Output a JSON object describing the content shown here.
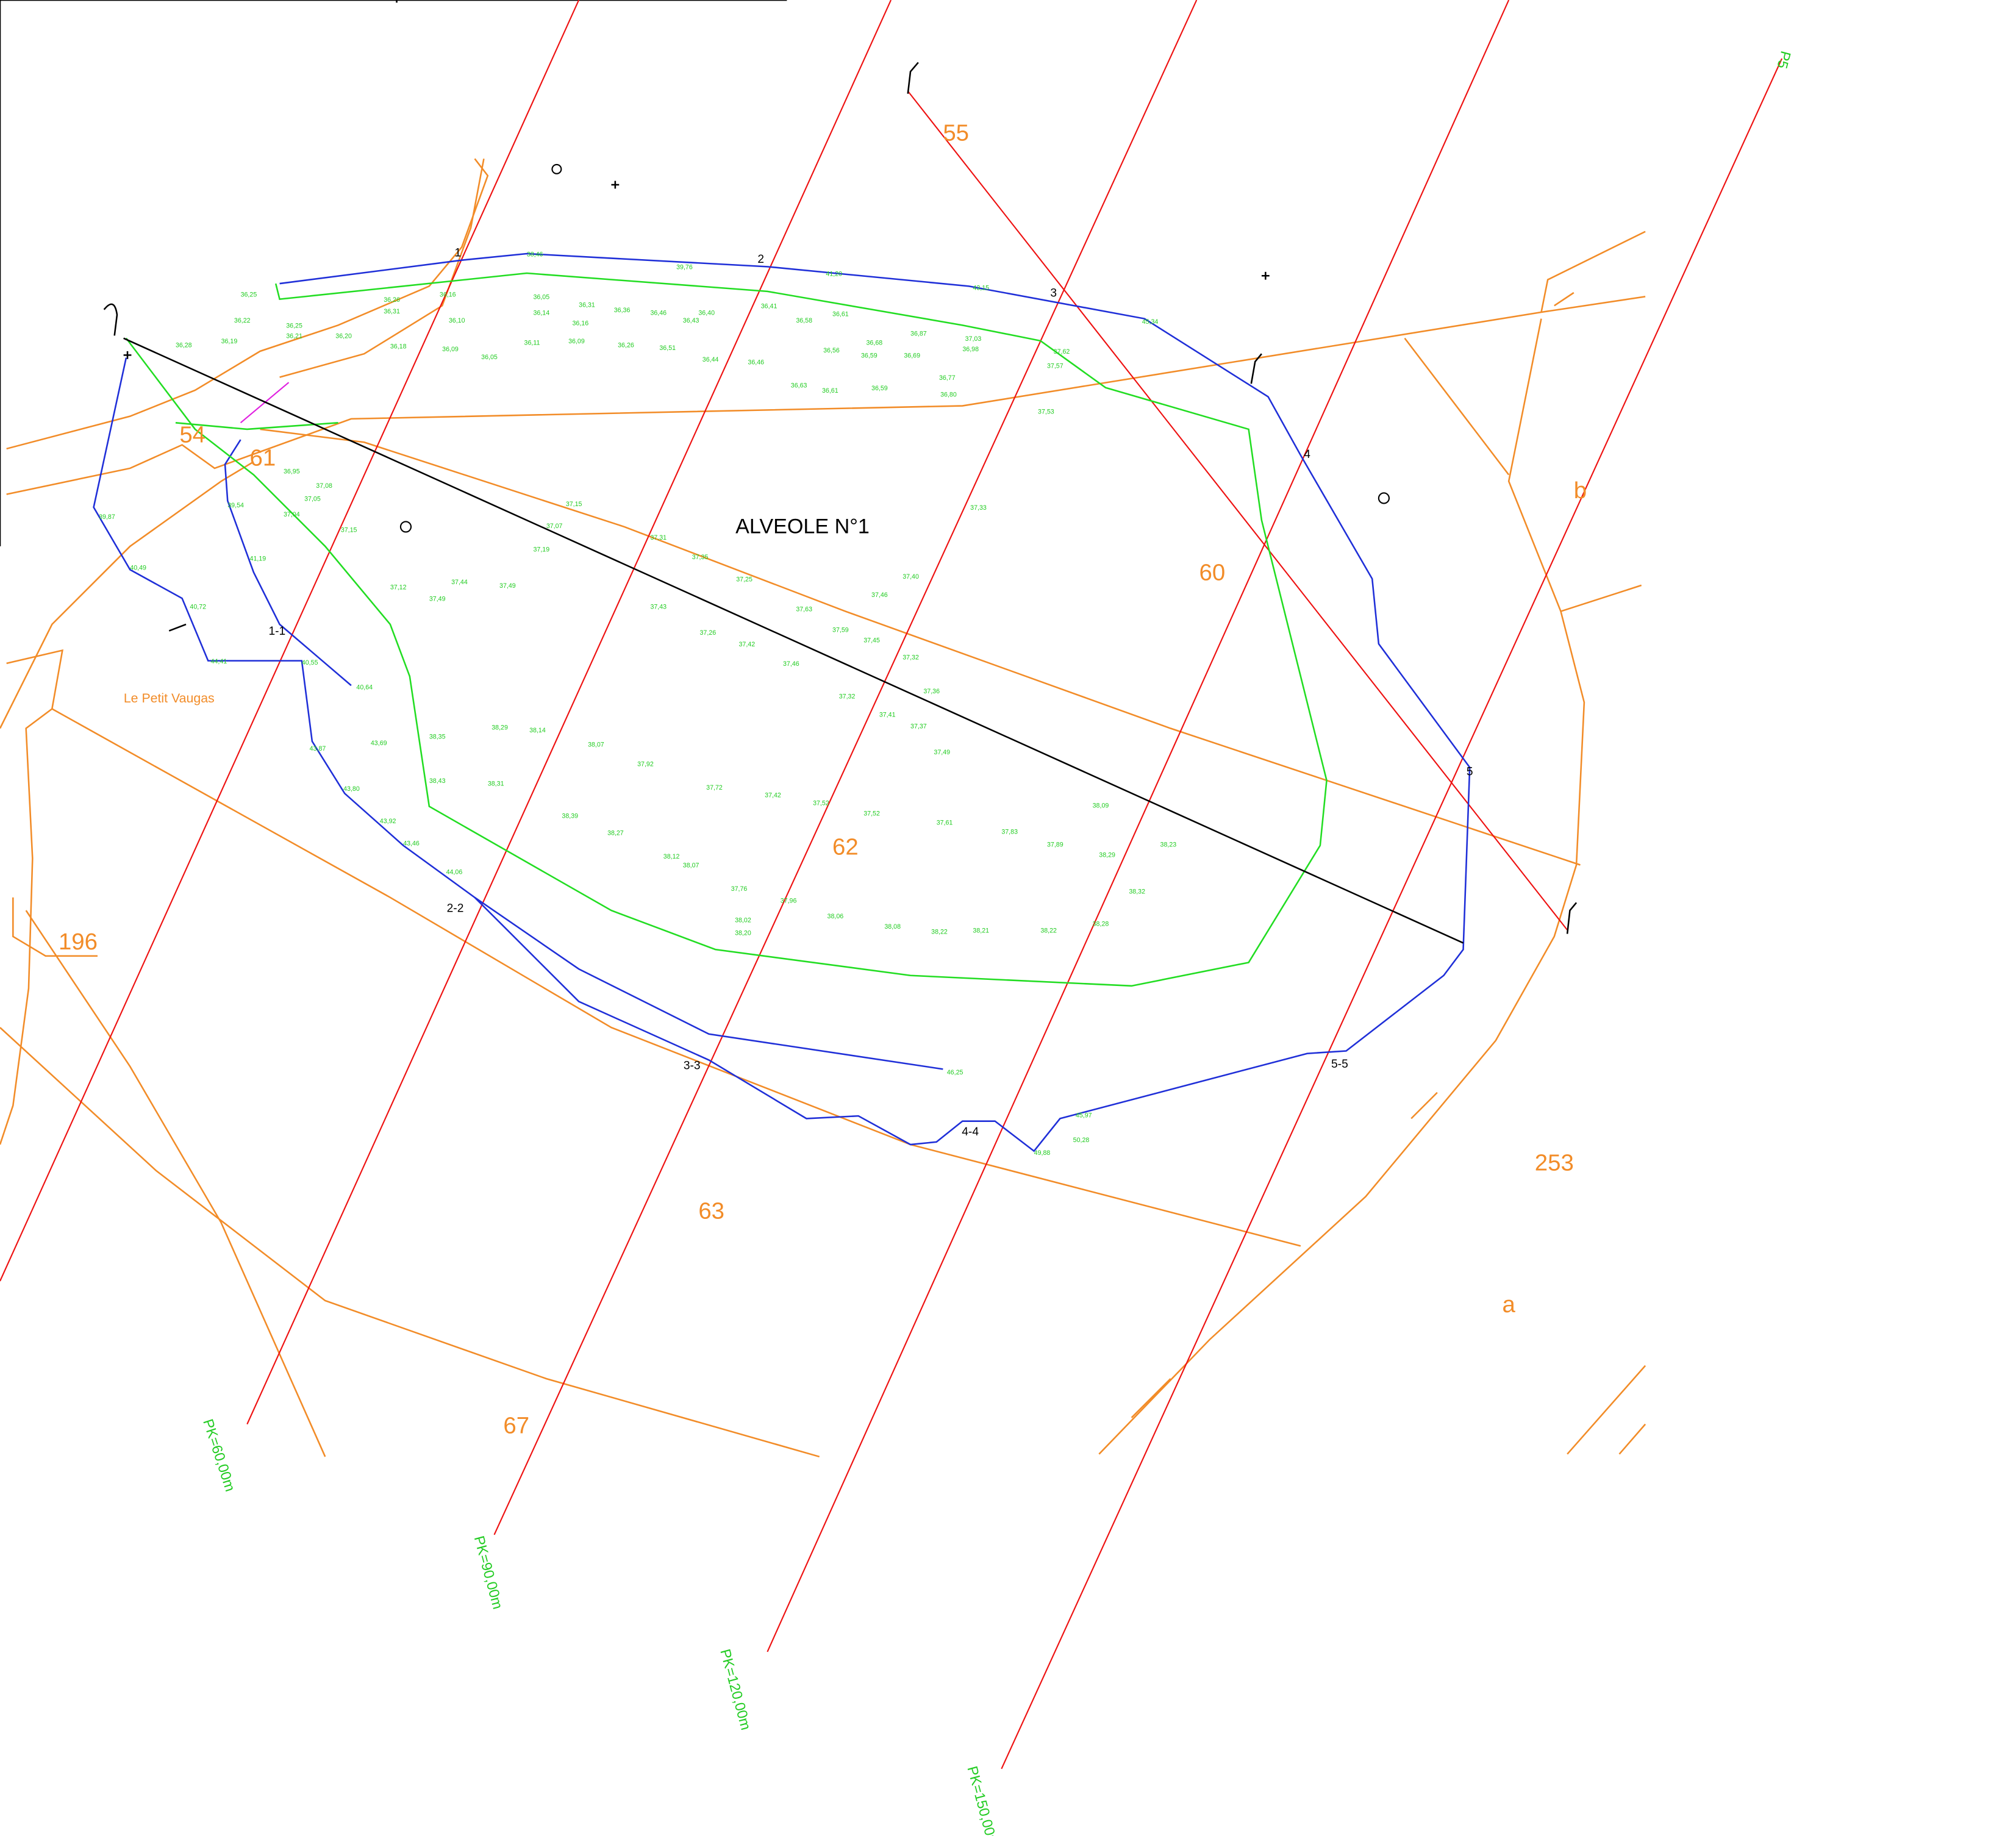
{
  "title": "ALVEOLE N°1",
  "place": "Le Petit Vaugas",
  "parcels": [
    "54",
    "61",
    "55",
    "60",
    "62",
    "63",
    "67",
    "196",
    "253",
    "a",
    "b"
  ],
  "pk_labels": [
    "PK=60,00m",
    "PK=90,00m",
    "PK=120,00m",
    "PK=150,00m",
    "P5"
  ],
  "sections": [
    "1",
    "2",
    "3",
    "4",
    "5",
    "1-1",
    "2-2",
    "3-3",
    "4-4",
    "5-5"
  ],
  "elevations": [
    "36,25",
    "36,22",
    "36,19",
    "36,28",
    "36,25",
    "36,21",
    "36,20",
    "36,31",
    "36,26",
    "36,16",
    "36,10",
    "36,05",
    "36,09",
    "36,18",
    "36,05",
    "36,14",
    "36,11",
    "36,09",
    "36,31",
    "36,16",
    "36,26",
    "36,51",
    "36,44",
    "36,46",
    "36,36",
    "36,46",
    "36,40",
    "36,43",
    "36,41",
    "36,58",
    "36,61",
    "36,63",
    "36,61",
    "36,59",
    "36,56",
    "36,68",
    "36,59",
    "36,69",
    "36,87",
    "36,98",
    "37,03",
    "36,77",
    "36,80",
    "37,53",
    "37,62",
    "37,57",
    "37,33",
    "37,40",
    "37,46",
    "37,63",
    "37,59",
    "37,45",
    "37,32",
    "37,36",
    "37,41",
    "37,37",
    "37,49",
    "37,52",
    "37,61",
    "37,83",
    "37,89",
    "38,09",
    "38,29",
    "38,23",
    "38,32",
    "38,28",
    "38,22",
    "38,21",
    "38,22",
    "38,08",
    "38,06",
    "37,96",
    "37,76",
    "38,02",
    "38,20",
    "37,43",
    "37,26",
    "37,42",
    "37,46",
    "37,32",
    "37,25",
    "37,35",
    "37,31",
    "37,15",
    "37,07",
    "37,19",
    "37,49",
    "37,44",
    "37,12",
    "37,49",
    "37,05",
    "37,04",
    "37,08",
    "37,15",
    "36,95",
    "38,29",
    "38,14",
    "38,07",
    "37,92",
    "37,72",
    "37,42",
    "37,52",
    "38,39",
    "38,27",
    "38,12",
    "38,07",
    "38,31",
    "38,35",
    "38,43",
    "43,69",
    "43,87",
    "43,80",
    "43,92",
    "43,46",
    "44,06",
    "44,41",
    "40,55",
    "40,64",
    "40,72",
    "41,19",
    "39,54",
    "39,87",
    "40,49",
    "38,46",
    "39,76",
    "41,20",
    "43,15",
    "45,34",
    "46,25",
    "45,97",
    "49,88",
    "50,28"
  ]
}
